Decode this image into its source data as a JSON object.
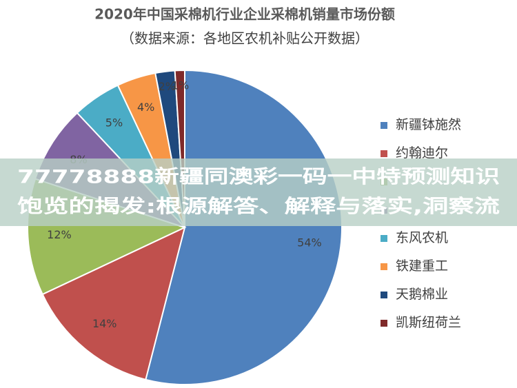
{
  "chart_data": {
    "type": "pie",
    "title": "2020年中国采棉机行业企业采棉机销量市场份额",
    "subtitle": "（数据来源：各地区农机补贴公开数据）",
    "categories": [
      "新疆钵施然",
      "约翰迪尔",
      null,
      null,
      "东风农机",
      "铁建重工",
      "天鹅棉业",
      "凯斯纽荷兰"
    ],
    "values": [
      54,
      14,
      12,
      8,
      5,
      4,
      2,
      1
    ],
    "value_labels": [
      "54%",
      "14%",
      "12%",
      "8%",
      "5%",
      "4%",
      "2%",
      "1%"
    ],
    "colors": [
      "#4f81bd",
      "#c0504d",
      "#9bbb59",
      "#8064a2",
      "#4bacc6",
      "#f79646",
      "#1f497d",
      "#7f2a2a"
    ],
    "legend": "right"
  },
  "overlay": [
    "77778888新疆同澳彩一码一中特预测知识",
    "饱览的揭发:根源解答、解释与落实,洞察流"
  ]
}
